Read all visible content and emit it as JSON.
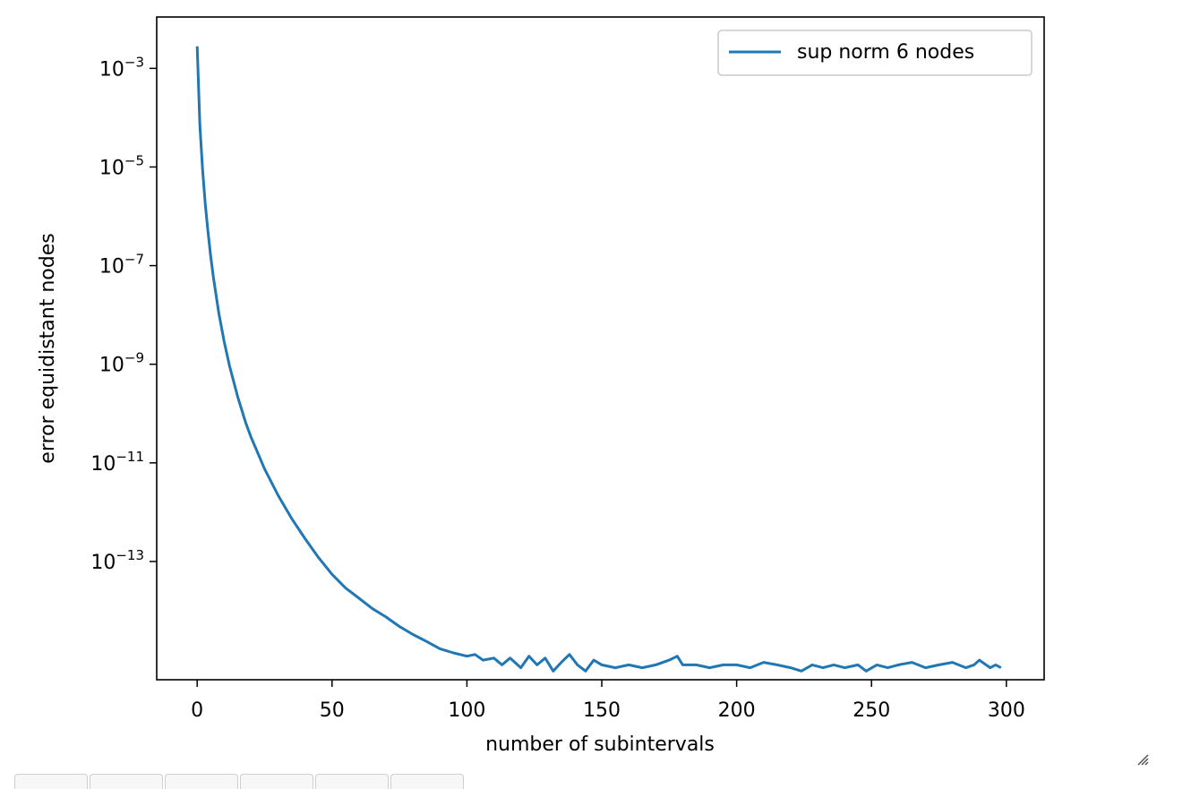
{
  "chart_data": {
    "type": "line",
    "title": "",
    "xlabel": "number of subintervals",
    "ylabel": "error equidistant nodes",
    "xlim": [
      -15,
      314
    ],
    "ylim": [
      4e-16,
      0.011
    ],
    "yscale": "log",
    "grid": false,
    "legend": "top-right",
    "x_ticks": [
      0,
      50,
      100,
      150,
      200,
      250,
      300
    ],
    "x_tick_labels": [
      "0",
      "50",
      "100",
      "150",
      "200",
      "250",
      "300"
    ],
    "y_ticks": [
      {
        "base": "10",
        "exp": "−3"
      },
      {
        "base": "10",
        "exp": "−5"
      },
      {
        "base": "10",
        "exp": "−7"
      },
      {
        "base": "10",
        "exp": "−9"
      },
      {
        "base": "10",
        "exp": "−11"
      },
      {
        "base": "10",
        "exp": "−13"
      }
    ],
    "y_tick_values": [
      0.001,
      1e-05,
      1e-07,
      1e-09,
      1e-11,
      1e-13
    ],
    "series": [
      {
        "name": "sup norm 6 nodes",
        "color": "#1f77b4",
        "x": [
          0,
          1,
          2,
          3,
          4,
          5,
          6,
          8,
          10,
          12,
          15,
          18,
          20,
          25,
          30,
          35,
          40,
          45,
          50,
          55,
          60,
          65,
          70,
          75,
          80,
          85,
          90,
          95,
          100,
          103,
          106,
          110,
          113,
          116,
          120,
          123,
          126,
          129,
          132,
          135,
          138,
          141,
          144,
          147,
          150,
          155,
          160,
          165,
          170,
          175,
          178,
          180,
          185,
          190,
          195,
          200,
          205,
          210,
          215,
          220,
          224,
          228,
          232,
          236,
          240,
          245,
          248,
          252,
          256,
          260,
          265,
          270,
          275,
          280,
          285,
          288,
          290,
          294,
          296,
          298
        ],
        "y": [
          0.0028,
          7e-05,
          9e-06,
          1.8e-06,
          5e-07,
          1.6e-07,
          5.8e-08,
          1.1e-08,
          2.9e-09,
          9.3e-10,
          2.2e-10,
          6.5e-11,
          3.3e-11,
          7.5e-12,
          2.2e-12,
          7.5e-13,
          2.9e-13,
          1.2e-13,
          5.5e-14,
          2.9e-14,
          1.8e-14,
          1.1e-14,
          7.5e-15,
          4.8e-15,
          3.3e-15,
          2.4e-15,
          1.7e-15,
          1.4e-15,
          1.2e-15,
          1.3e-15,
          1e-15,
          1.1e-15,
          8e-16,
          1.1e-15,
          7e-16,
          1.2e-15,
          8e-16,
          1.1e-15,
          6e-16,
          9e-16,
          1.3e-15,
          8e-16,
          6e-16,
          1e-15,
          8e-16,
          7e-16,
          8e-16,
          7e-16,
          8e-16,
          1e-15,
          1.2e-15,
          8e-16,
          8e-16,
          7e-16,
          8e-16,
          8e-16,
          7e-16,
          9e-16,
          8e-16,
          7e-16,
          6e-16,
          8e-16,
          7e-16,
          8e-16,
          7e-16,
          8e-16,
          6e-16,
          8e-16,
          7e-16,
          8e-16,
          9e-16,
          7e-16,
          8e-16,
          9e-16,
          7e-16,
          8e-16,
          1e-15,
          7e-16,
          8e-16,
          7e-16
        ]
      }
    ]
  },
  "ui": {
    "toolbar_buttons": 6,
    "resize_icon": "resize-grip-icon"
  }
}
